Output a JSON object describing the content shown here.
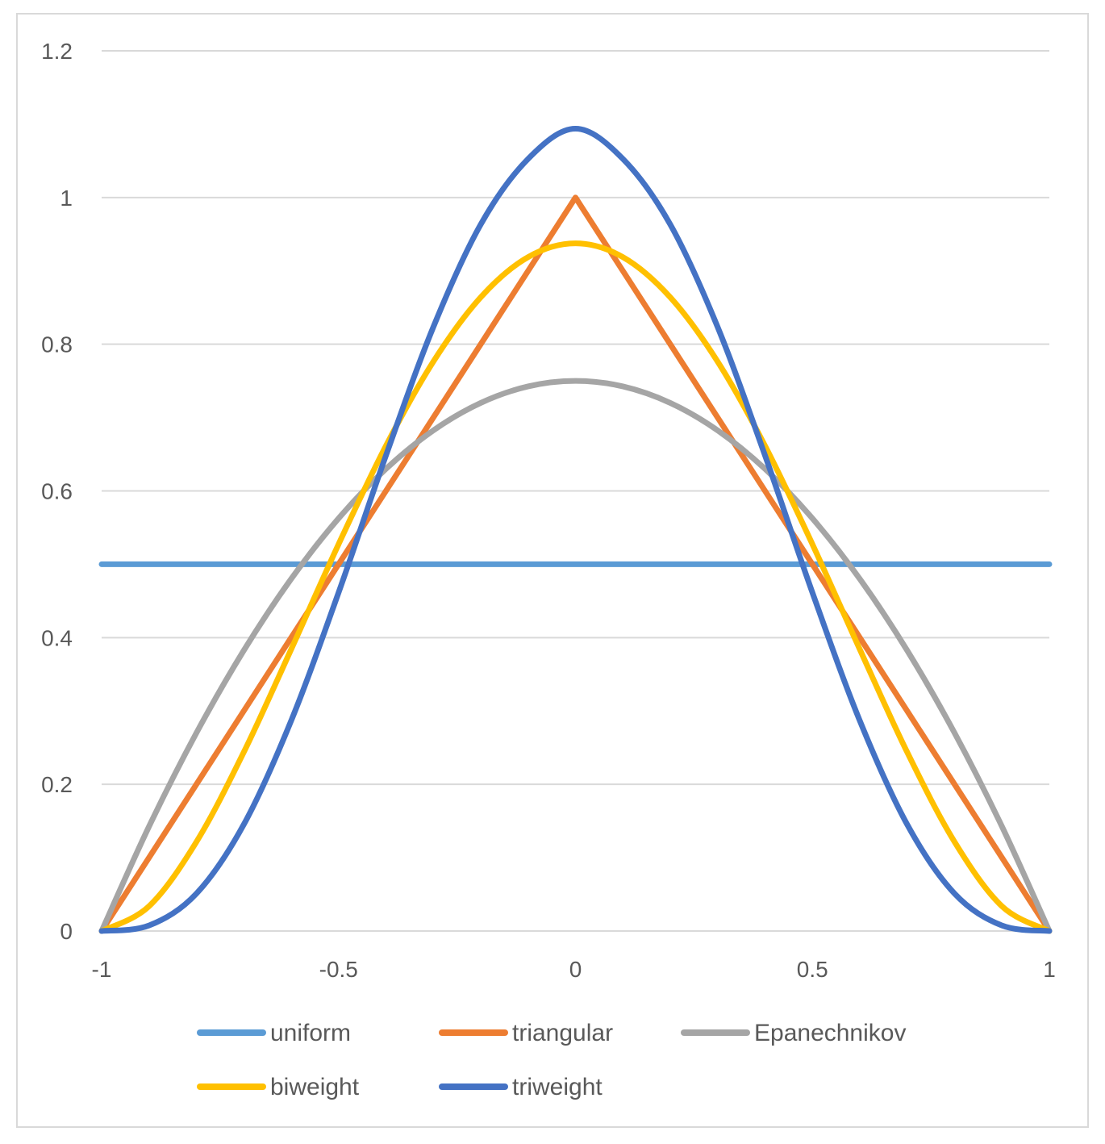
{
  "chart_data": {
    "type": "line",
    "title": "",
    "xlabel": "",
    "ylabel": "",
    "xlim": [
      -1,
      1
    ],
    "ylim": [
      0,
      1.2
    ],
    "x_ticks": [
      -1,
      -0.5,
      0,
      0.5,
      1
    ],
    "x_tick_labels": [
      "-1",
      "-0.5",
      "0",
      "0.5",
      "1"
    ],
    "y_ticks": [
      0,
      0.2,
      0.4,
      0.6,
      0.8,
      1,
      1.2
    ],
    "y_tick_labels": [
      "0",
      "0.2",
      "0.4",
      "0.6",
      "0.8",
      "1",
      "1.2"
    ],
    "grid": true,
    "legend_position": "bottom",
    "x": [
      -1,
      -0.9,
      -0.8,
      -0.7,
      -0.6,
      -0.5,
      -0.4,
      -0.3,
      -0.2,
      -0.1,
      0,
      0.1,
      0.2,
      0.3,
      0.4,
      0.5,
      0.6,
      0.7,
      0.8,
      0.9,
      1
    ],
    "series": [
      {
        "name": "uniform",
        "color": "#5b9bd5",
        "values": [
          0.5,
          0.5,
          0.5,
          0.5,
          0.5,
          0.5,
          0.5,
          0.5,
          0.5,
          0.5,
          0.5,
          0.5,
          0.5,
          0.5,
          0.5,
          0.5,
          0.5,
          0.5,
          0.5,
          0.5,
          0.5
        ]
      },
      {
        "name": "triangular",
        "color": "#ed7d31",
        "values": [
          0,
          0.1,
          0.2,
          0.3,
          0.4,
          0.5,
          0.6,
          0.7,
          0.8,
          0.9,
          1,
          0.9,
          0.8,
          0.7,
          0.6,
          0.5,
          0.4,
          0.3,
          0.2,
          0.1,
          0
        ]
      },
      {
        "name": "Epanechnikov",
        "color": "#a5a5a5",
        "values": [
          0,
          0.1425,
          0.27,
          0.3825,
          0.48,
          0.5625,
          0.63,
          0.6825,
          0.72,
          0.7425,
          0.75,
          0.7425,
          0.72,
          0.6825,
          0.63,
          0.5625,
          0.48,
          0.3825,
          0.27,
          0.1425,
          0
        ]
      },
      {
        "name": "biweight",
        "color": "#ffc000",
        "values": [
          0,
          0.0338,
          0.1215,
          0.2438,
          0.384,
          0.5273,
          0.6615,
          0.7763,
          0.864,
          0.9188,
          0.9375,
          0.9188,
          0.864,
          0.7763,
          0.6615,
          0.5273,
          0.384,
          0.2438,
          0.1215,
          0.0338,
          0
        ]
      },
      {
        "name": "triweight",
        "color": "#4472c4",
        "values": [
          0,
          0.0075,
          0.051,
          0.1452,
          0.2867,
          0.4614,
          0.6483,
          0.8234,
          0.9633,
          1.0527,
          1.0938,
          1.0527,
          0.9633,
          0.8234,
          0.6483,
          0.4614,
          0.2867,
          0.1452,
          0.051,
          0.0075,
          0
        ]
      }
    ]
  }
}
